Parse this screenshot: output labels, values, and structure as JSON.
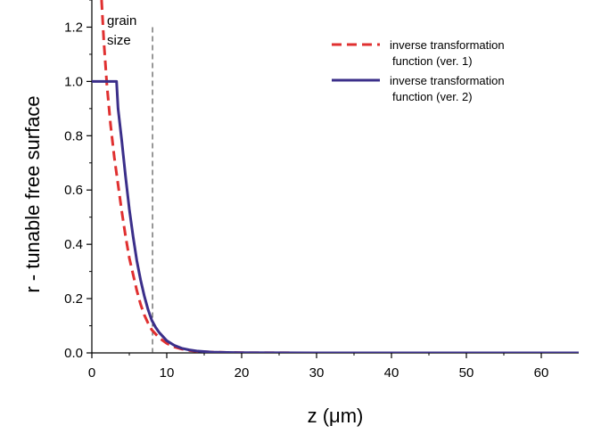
{
  "chart_data": {
    "type": "line",
    "title": "",
    "xlabel": "z  (μm)",
    "ylabel": "r - tunable  free surface",
    "xlim": [
      0,
      65
    ],
    "ylim": [
      0,
      1.3
    ],
    "xticks": [
      0,
      10,
      20,
      30,
      40,
      50,
      60
    ],
    "yticks": [
      0.0,
      0.2,
      0.4,
      0.6,
      0.8,
      1.0,
      1.2
    ],
    "ytick_labels": [
      "0.0",
      "0.2",
      "0.4",
      "0.6",
      "0.8",
      "1.0",
      "1.2"
    ],
    "grid": false,
    "legend_position": "top-right",
    "annotation": {
      "lines": [
        "grain",
        "size"
      ],
      "x": 8.1
    },
    "series": [
      {
        "name_lines": [
          "inverse transformation",
          "function (ver. 1)"
        ],
        "color": "#e03030",
        "dash": "dashed",
        "x": [
          1.3,
          1.6,
          2,
          2.5,
          3,
          3.5,
          4,
          4.5,
          5,
          5.5,
          6,
          6.5,
          7,
          7.5,
          8,
          9,
          10,
          11,
          12,
          13,
          14,
          16,
          18,
          20,
          25,
          30,
          40,
          50,
          65
        ],
        "y": [
          1.3,
          1.15,
          0.99,
          0.84,
          0.72,
          0.62,
          0.52,
          0.43,
          0.35,
          0.29,
          0.23,
          0.18,
          0.14,
          0.11,
          0.085,
          0.055,
          0.035,
          0.022,
          0.014,
          0.009,
          0.006,
          0.003,
          0.0015,
          0.0008,
          0.0002,
          0.0,
          0.0,
          0.0,
          0.0
        ]
      },
      {
        "name_lines": [
          "inverse transformation",
          "function (ver. 2)"
        ],
        "color": "#3b2f8a",
        "dash": "solid",
        "x": [
          0,
          3.3,
          3.5,
          4,
          4.5,
          5,
          5.5,
          6,
          6.5,
          7,
          7.5,
          8,
          8.5,
          9,
          10,
          11,
          12,
          13,
          14,
          16,
          18,
          20,
          25,
          30,
          40,
          50,
          65
        ],
        "y": [
          1.0,
          1.0,
          0.9,
          0.78,
          0.65,
          0.53,
          0.43,
          0.34,
          0.27,
          0.21,
          0.16,
          0.12,
          0.095,
          0.075,
          0.045,
          0.028,
          0.017,
          0.011,
          0.007,
          0.003,
          0.0015,
          0.0008,
          0.0002,
          0.0,
          0.0,
          0.0,
          0.0
        ]
      }
    ]
  }
}
